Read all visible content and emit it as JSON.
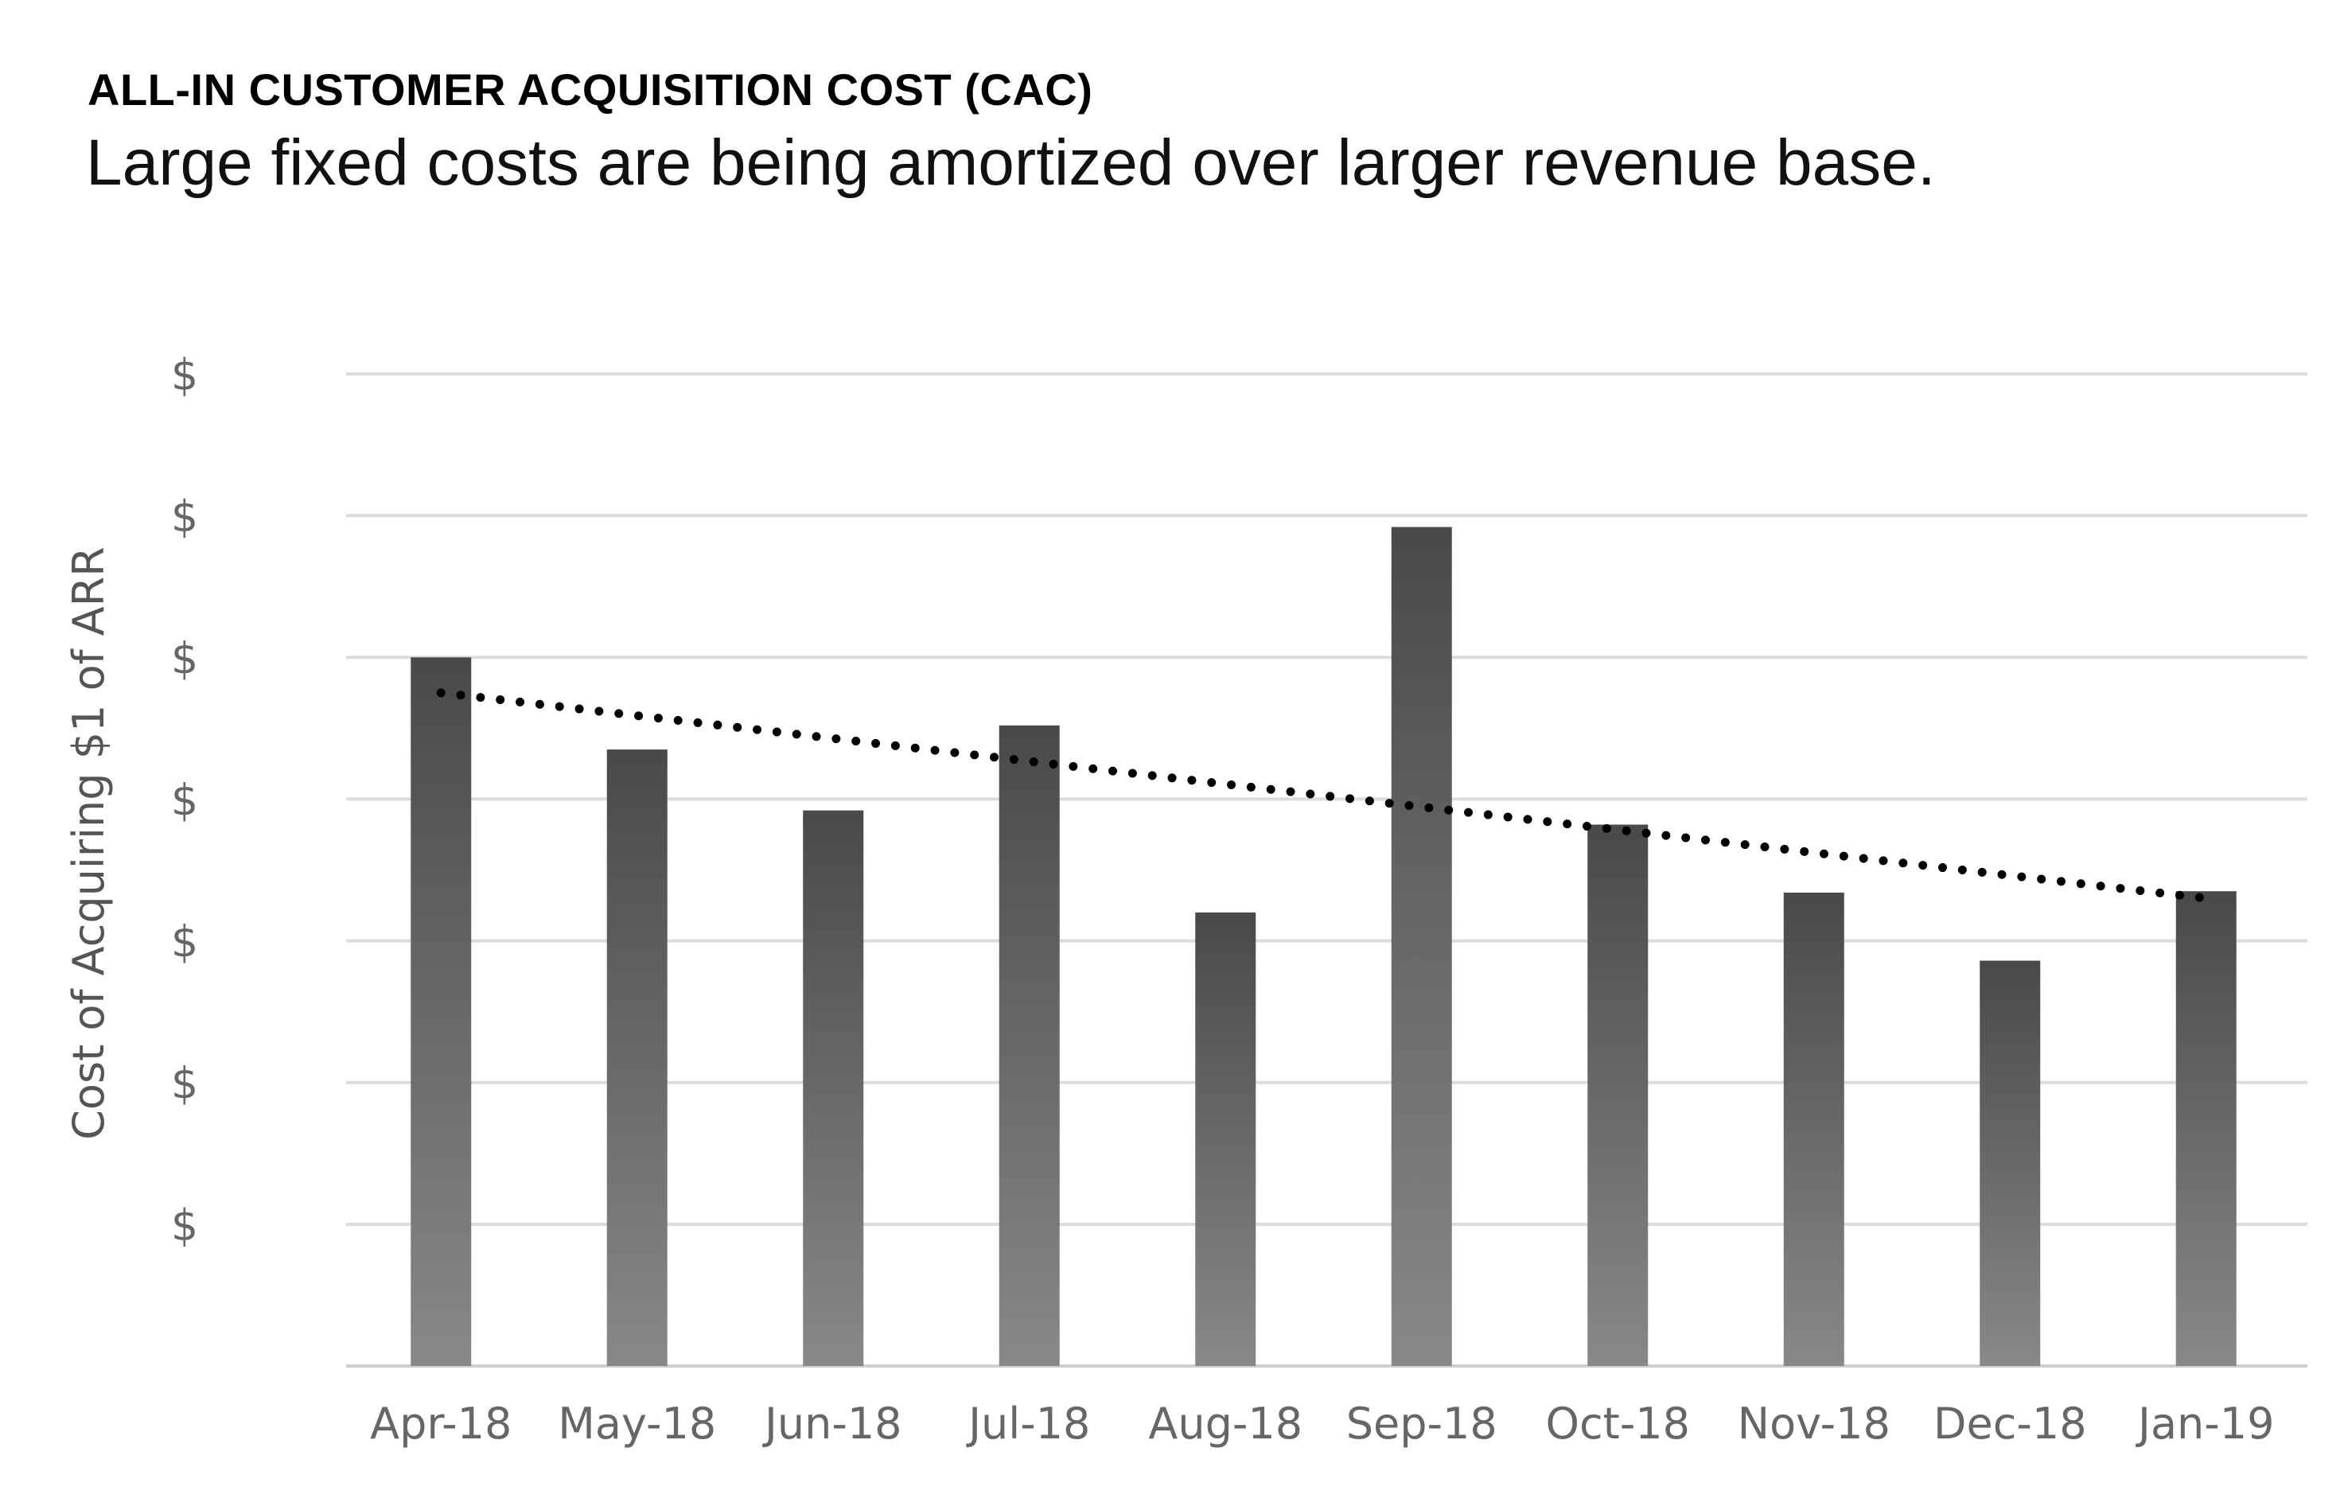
{
  "header": {
    "title": "ALL-IN CUSTOMER ACQUISITION COST (CAC)",
    "subtitle": "Large fixed costs are being amortized over larger revenue base."
  },
  "chart_data": {
    "type": "bar",
    "title": "ALL-IN CUSTOMER ACQUISITION COST (CAC)",
    "subtitle": "Large fixed costs are being amortized over larger revenue base.",
    "ylabel": "Cost of Acquiring $1 of ARR",
    "xlabel": "",
    "categories": [
      "Apr-18",
      "May-18",
      "Jun-18",
      "Jul-18",
      "Aug-18",
      "Sep-18",
      "Oct-18",
      "Nov-18",
      "Dec-18",
      "Jan-19"
    ],
    "values": [
      5.0,
      4.35,
      3.92,
      4.52,
      3.2,
      5.92,
      3.82,
      3.34,
      2.86,
      3.35
    ],
    "y_tick_labels": [
      "$",
      "$",
      "$",
      "$",
      "$",
      "$",
      "$"
    ],
    "ylim": [
      0,
      7
    ],
    "grid": true,
    "trendline": {
      "type": "linear",
      "style": "dotted",
      "start_value": 4.75,
      "end_value": 3.3
    },
    "colors": {
      "bar_top": "#4a4948",
      "bar_bottom": "#8a8887",
      "grid": "#dcdcdc",
      "trend": "#000000",
      "tick_text": "#666666"
    }
  }
}
